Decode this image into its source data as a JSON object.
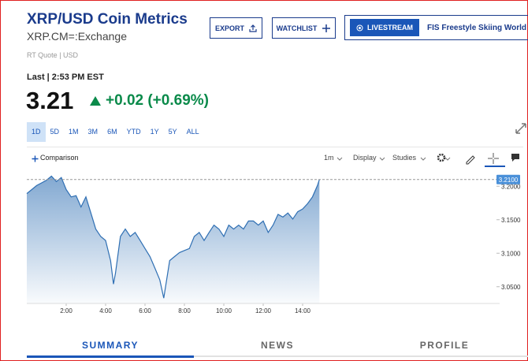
{
  "header": {
    "title": "XRP/USD Coin Metrics",
    "symbol": "XRP.CM=:Exchange",
    "quote_type": "RT Quote | USD",
    "last_time": "Last | 2:53 PM EST",
    "price": "3.21",
    "change": "+0.02 (+0.69%)"
  },
  "buttons": {
    "export": "EXPORT",
    "watchlist": "WATCHLIST",
    "livestream": "LIVESTREAM",
    "livestream_title": "FIS Freestyle Skiing World Cup"
  },
  "ranges": [
    "1D",
    "5D",
    "1M",
    "3M",
    "6M",
    "YTD",
    "1Y",
    "5Y",
    "ALL"
  ],
  "toolbar": {
    "comparison": "Comparison",
    "interval": "1m",
    "display": "Display",
    "studies": "Studies"
  },
  "chart_data": {
    "type": "area",
    "color": "#2f6fb3",
    "x": [
      0,
      0.25,
      0.5,
      0.75,
      1,
      1.25,
      1.5,
      1.75,
      2,
      2.25,
      2.5,
      2.75,
      3,
      3.25,
      3.5,
      3.75,
      4,
      4.25,
      4.4,
      4.5,
      4.75,
      5,
      5.25,
      5.5,
      5.75,
      6,
      6.25,
      6.5,
      6.75,
      6.95,
      7.25,
      7.5,
      7.75,
      8,
      8.25,
      8.5,
      8.75,
      9,
      9.25,
      9.5,
      9.75,
      10,
      10.25,
      10.5,
      10.75,
      11,
      11.25,
      11.5,
      11.75,
      12,
      12.25,
      12.5,
      12.75,
      13,
      13.25,
      13.5,
      13.75,
      14,
      14.25,
      14.5,
      14.75,
      14.85
    ],
    "values": [
      3.189,
      3.195,
      3.201,
      3.205,
      3.209,
      3.215,
      3.207,
      3.213,
      3.195,
      3.184,
      3.186,
      3.169,
      3.184,
      3.16,
      3.136,
      3.125,
      3.119,
      3.089,
      3.054,
      3.07,
      3.125,
      3.136,
      3.125,
      3.131,
      3.119,
      3.107,
      3.095,
      3.078,
      3.06,
      3.033,
      3.089,
      3.095,
      3.101,
      3.104,
      3.107,
      3.125,
      3.131,
      3.119,
      3.131,
      3.142,
      3.136,
      3.125,
      3.142,
      3.136,
      3.142,
      3.136,
      3.148,
      3.148,
      3.142,
      3.148,
      3.131,
      3.142,
      3.158,
      3.154,
      3.16,
      3.151,
      3.162,
      3.166,
      3.174,
      3.184,
      3.201,
      3.21
    ],
    "xlim": [
      0,
      24
    ],
    "ylim": [
      3.025,
      3.225
    ],
    "xticks": [
      {
        "value": 2,
        "label": "2:00"
      },
      {
        "value": 4,
        "label": "4:00"
      },
      {
        "value": 6,
        "label": "6:00"
      },
      {
        "value": 8,
        "label": "8:00"
      },
      {
        "value": 10,
        "label": "10:00"
      },
      {
        "value": 12,
        "label": "12:00"
      },
      {
        "value": 14,
        "label": "14:00"
      }
    ],
    "yticks": [
      {
        "value": 3.05,
        "label": "3.0500"
      },
      {
        "value": 3.1,
        "label": "3.1000"
      },
      {
        "value": 3.15,
        "label": "3.1500"
      },
      {
        "value": 3.2,
        "label": "3.2000"
      }
    ],
    "last_marker": {
      "value": 3.21,
      "label": "3.2100"
    }
  },
  "tabs": [
    "SUMMARY",
    "NEWS",
    "PROFILE"
  ]
}
